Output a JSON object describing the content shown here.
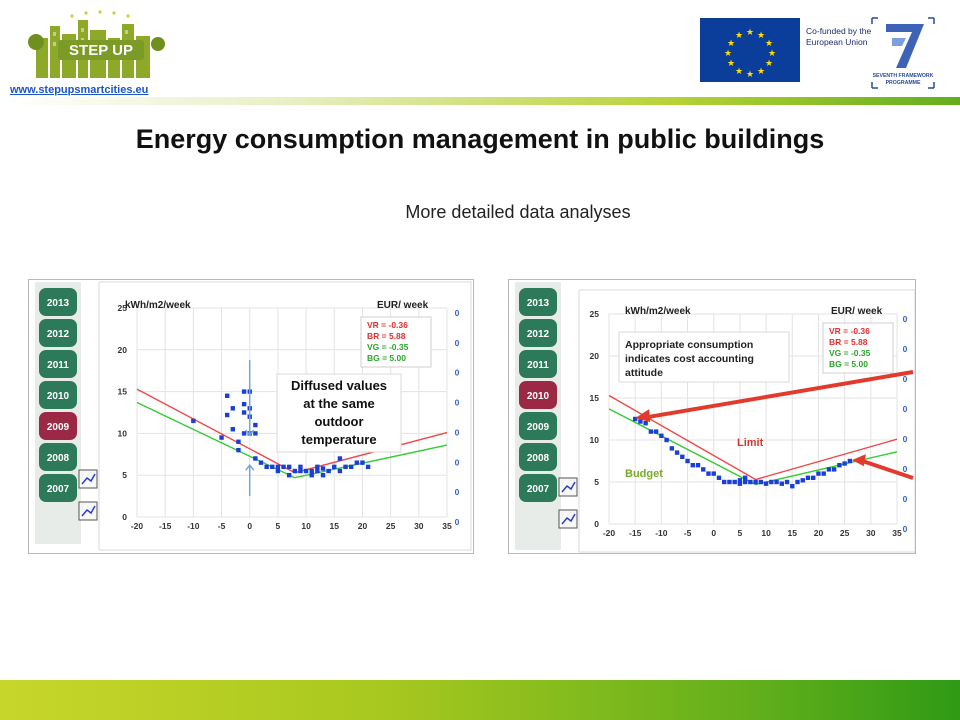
{
  "header": {
    "site_link": "www.stepupsmartcities.eu",
    "logo_text": "STEP UP",
    "eu_line1": "Co-funded by the",
    "eu_line2": "European Union",
    "fp7_line1": "SEVENTH FRAMEWORK",
    "fp7_line2": "PROGRAMME"
  },
  "title": "Energy consumption management in public buildings",
  "subtitle": "More detailed data analyses",
  "colors": {
    "limit_line": "#f04848",
    "budget_line": "#33cc33",
    "points": "#1a3fd6",
    "year_tab": "#2d7a5a",
    "year_tab_active": "#9b2845",
    "arrow": "#e23b2e"
  },
  "chart_data": [
    {
      "type": "scatter",
      "year_tabs": [
        "2013",
        "2012",
        "2011",
        "2010",
        "2009",
        "2008",
        "2007"
      ],
      "active_year": "2009",
      "y_unit_left": "kWh/m2/week",
      "y_unit_right": "EUR/ week",
      "xlim": [
        -20,
        35
      ],
      "ylim": [
        0,
        25
      ],
      "x_ticks": [
        "-20",
        "-15",
        "-10",
        "-5",
        "0",
        "5",
        "10",
        "15",
        "20",
        "25",
        "30",
        "35"
      ],
      "y_ticks": [
        "0",
        "5",
        "10",
        "15",
        "20",
        "25"
      ],
      "right_ticks": [
        "0",
        "0",
        "0",
        "0",
        "0",
        "0",
        "0",
        "0"
      ],
      "params": {
        "VR": "VR = -0.36",
        "BR": "BR = 5.88",
        "VG": "VG = -0.35",
        "BG": "BG = 5.00"
      },
      "limit_line": [
        [
          -20,
          15.3
        ],
        [
          8,
          5.3
        ],
        [
          35,
          10.1
        ]
      ],
      "budget_line": [
        [
          -20,
          13.7
        ],
        [
          8,
          4.7
        ],
        [
          35,
          8.6
        ]
      ],
      "points": [
        [
          -10,
          11.5
        ],
        [
          -5,
          9.5
        ],
        [
          -4,
          14.5
        ],
        [
          -4,
          12.2
        ],
        [
          -3,
          13
        ],
        [
          -3,
          10.5
        ],
        [
          -2,
          9
        ],
        [
          -2,
          8
        ],
        [
          -1,
          10
        ],
        [
          -1,
          12.5
        ],
        [
          -1,
          15
        ],
        [
          -1,
          13.5
        ],
        [
          0,
          12
        ],
        [
          0,
          10
        ],
        [
          0,
          15
        ],
        [
          0,
          13
        ],
        [
          1,
          11
        ],
        [
          1,
          10
        ],
        [
          1,
          7
        ],
        [
          2,
          6.5
        ],
        [
          3,
          6
        ],
        [
          4,
          6
        ],
        [
          5,
          6
        ],
        [
          5,
          5.5
        ],
        [
          6,
          6
        ],
        [
          7,
          6
        ],
        [
          7,
          5
        ],
        [
          8,
          5.5
        ],
        [
          9,
          6
        ],
        [
          9,
          5.5
        ],
        [
          10,
          5.5
        ],
        [
          11,
          5.5
        ],
        [
          11,
          5
        ],
        [
          12,
          6
        ],
        [
          12,
          5.5
        ],
        [
          13,
          5
        ],
        [
          13,
          5.8
        ],
        [
          14,
          5.5
        ],
        [
          15,
          6
        ],
        [
          16,
          7
        ],
        [
          16,
          5.5
        ],
        [
          17,
          6
        ],
        [
          18,
          6
        ],
        [
          19,
          6.5
        ],
        [
          20,
          6.5
        ],
        [
          21,
          6
        ]
      ],
      "annotation": "Diffused values at the same outdoor temperature"
    },
    {
      "type": "scatter",
      "year_tabs": [
        "2013",
        "2012",
        "2011",
        "2010",
        "2009",
        "2008",
        "2007"
      ],
      "active_year": "2010",
      "y_unit_left": "kWh/m2/week",
      "y_unit_right": "EUR/ week",
      "xlim": [
        -20,
        35
      ],
      "ylim": [
        0,
        25
      ],
      "x_ticks": [
        "-20",
        "-15",
        "-10",
        "-5",
        "0",
        "5",
        "10",
        "15",
        "20",
        "25",
        "30",
        "35"
      ],
      "y_ticks": [
        "0",
        "5",
        "10",
        "15",
        "20",
        "25"
      ],
      "right_ticks": [
        "0",
        "0",
        "0",
        "0",
        "0",
        "0",
        "0",
        "0"
      ],
      "params": {
        "VR": "VR = -0.36",
        "BR": "BR = 5.88",
        "VG": "VG = -0.35",
        "BG": "BG = 5.00"
      },
      "limit_line": [
        [
          -20,
          15.3
        ],
        [
          8,
          5.3
        ],
        [
          35,
          10.1
        ]
      ],
      "budget_line": [
        [
          -20,
          13.7
        ],
        [
          8,
          4.7
        ],
        [
          35,
          8.6
        ]
      ],
      "points": [
        [
          -15,
          12.5
        ],
        [
          -14,
          12.2
        ],
        [
          -13,
          12
        ],
        [
          -12,
          11
        ],
        [
          -11,
          11
        ],
        [
          -10,
          10.5
        ],
        [
          -9,
          10
        ],
        [
          -8,
          9
        ],
        [
          -7,
          8.5
        ],
        [
          -6,
          8
        ],
        [
          -5,
          7.5
        ],
        [
          -4,
          7
        ],
        [
          -3,
          7
        ],
        [
          -2,
          6.5
        ],
        [
          -1,
          6
        ],
        [
          0,
          6
        ],
        [
          1,
          5.5
        ],
        [
          2,
          5
        ],
        [
          3,
          5
        ],
        [
          4,
          5
        ],
        [
          5,
          5.2
        ],
        [
          5,
          4.8
        ],
        [
          6,
          5
        ],
        [
          6,
          5.5
        ],
        [
          7,
          5
        ],
        [
          8,
          5
        ],
        [
          9,
          5
        ],
        [
          10,
          4.8
        ],
        [
          11,
          5
        ],
        [
          12,
          5
        ],
        [
          13,
          4.8
        ],
        [
          14,
          5
        ],
        [
          15,
          4.5
        ],
        [
          16,
          5
        ],
        [
          17,
          5.2
        ],
        [
          18,
          5.5
        ],
        [
          19,
          5.5
        ],
        [
          20,
          6
        ],
        [
          21,
          6
        ],
        [
          22,
          6.5
        ],
        [
          23,
          6.5
        ],
        [
          24,
          7
        ],
        [
          25,
          7.2
        ],
        [
          26,
          7.5
        ]
      ],
      "annotation": "Appropriate consumption indicates cost accounting attitude",
      "limit_label": "Limit",
      "budget_label": "Budget"
    }
  ]
}
